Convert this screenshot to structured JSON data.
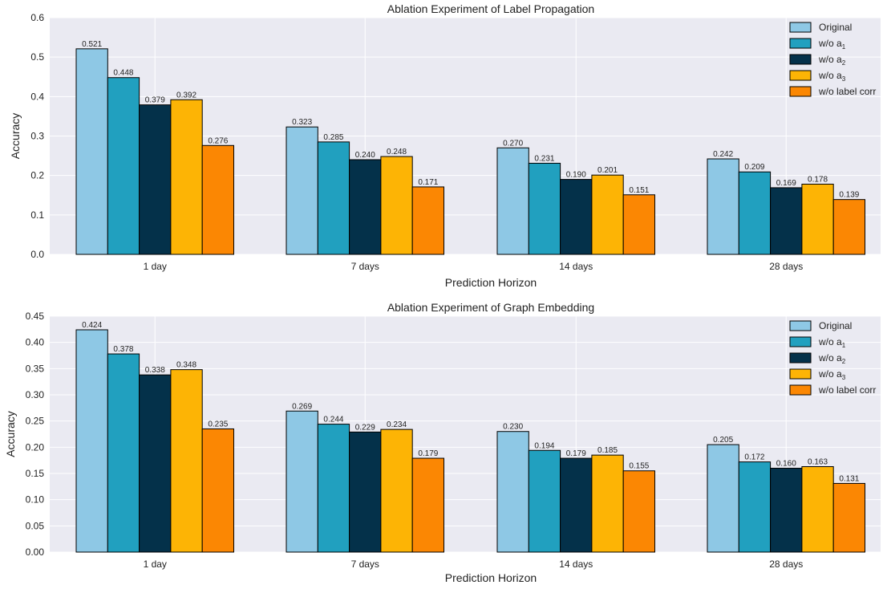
{
  "colors": {
    "background": "#EAEAF2",
    "grid": "#FFFFFF",
    "series": [
      "#8EC8E5",
      "#21A0BF",
      "#04314A",
      "#FDB405",
      "#FB8703"
    ]
  },
  "chart_data": [
    {
      "type": "bar",
      "title": "Ablation Experiment of Label Propagation",
      "xlabel": "Prediction Horizon",
      "ylabel": "Accuracy",
      "categories": [
        "1 day",
        "7 days",
        "14 days",
        "28 days"
      ],
      "ylim": [
        0,
        0.6
      ],
      "yticks": [
        "0.0",
        "0.1",
        "0.2",
        "0.3",
        "0.4",
        "0.5",
        "0.6"
      ],
      "legend_position": "top-right",
      "grid": true,
      "series": [
        {
          "name": "Original",
          "values": [
            0.521,
            0.323,
            0.27,
            0.242
          ],
          "labels": [
            "0.521",
            "0.323",
            "0.270",
            "0.242"
          ]
        },
        {
          "name": "w/o a",
          "sub": "1",
          "values": [
            0.448,
            0.285,
            0.231,
            0.209
          ],
          "labels": [
            "0.448",
            "0.285",
            "0.231",
            "0.209"
          ]
        },
        {
          "name": "w/o a",
          "sub": "2",
          "values": [
            0.379,
            0.24,
            0.19,
            0.169
          ],
          "labels": [
            "0.379",
            "0.240",
            "0.190",
            "0.169"
          ]
        },
        {
          "name": "w/o a",
          "sub": "3",
          "values": [
            0.392,
            0.248,
            0.201,
            0.178
          ],
          "labels": [
            "0.392",
            "0.248",
            "0.201",
            "0.178"
          ]
        },
        {
          "name": "w/o label corr",
          "values": [
            0.276,
            0.171,
            0.151,
            0.139
          ],
          "labels": [
            "0.276",
            "0.171",
            "0.151",
            "0.139"
          ]
        }
      ]
    },
    {
      "type": "bar",
      "title": "Ablation Experiment of Graph Embedding",
      "xlabel": "Prediction Horizon",
      "ylabel": "Accuracy",
      "categories": [
        "1 day",
        "7 days",
        "14 days",
        "28 days"
      ],
      "ylim": [
        0,
        0.45
      ],
      "yticks": [
        "0.00",
        "0.05",
        "0.10",
        "0.15",
        "0.20",
        "0.25",
        "0.30",
        "0.35",
        "0.40",
        "0.45"
      ],
      "legend_position": "top-right",
      "grid": true,
      "series": [
        {
          "name": "Original",
          "values": [
            0.424,
            0.269,
            0.23,
            0.205
          ],
          "labels": [
            "0.424",
            "0.269",
            "0.230",
            "0.205"
          ]
        },
        {
          "name": "w/o a",
          "sub": "1",
          "values": [
            0.378,
            0.244,
            0.194,
            0.172
          ],
          "labels": [
            "0.378",
            "0.244",
            "0.194",
            "0.172"
          ]
        },
        {
          "name": "w/o a",
          "sub": "2",
          "values": [
            0.338,
            0.229,
            0.179,
            0.16
          ],
          "labels": [
            "0.338",
            "0.229",
            "0.179",
            "0.160"
          ]
        },
        {
          "name": "w/o a",
          "sub": "3",
          "values": [
            0.348,
            0.234,
            0.185,
            0.163
          ],
          "labels": [
            "0.348",
            "0.234",
            "0.185",
            "0.163"
          ]
        },
        {
          "name": "w/o label corr",
          "values": [
            0.235,
            0.179,
            0.155,
            0.131
          ],
          "labels": [
            "0.235",
            "0.179",
            "0.155",
            "0.131"
          ]
        }
      ]
    }
  ]
}
